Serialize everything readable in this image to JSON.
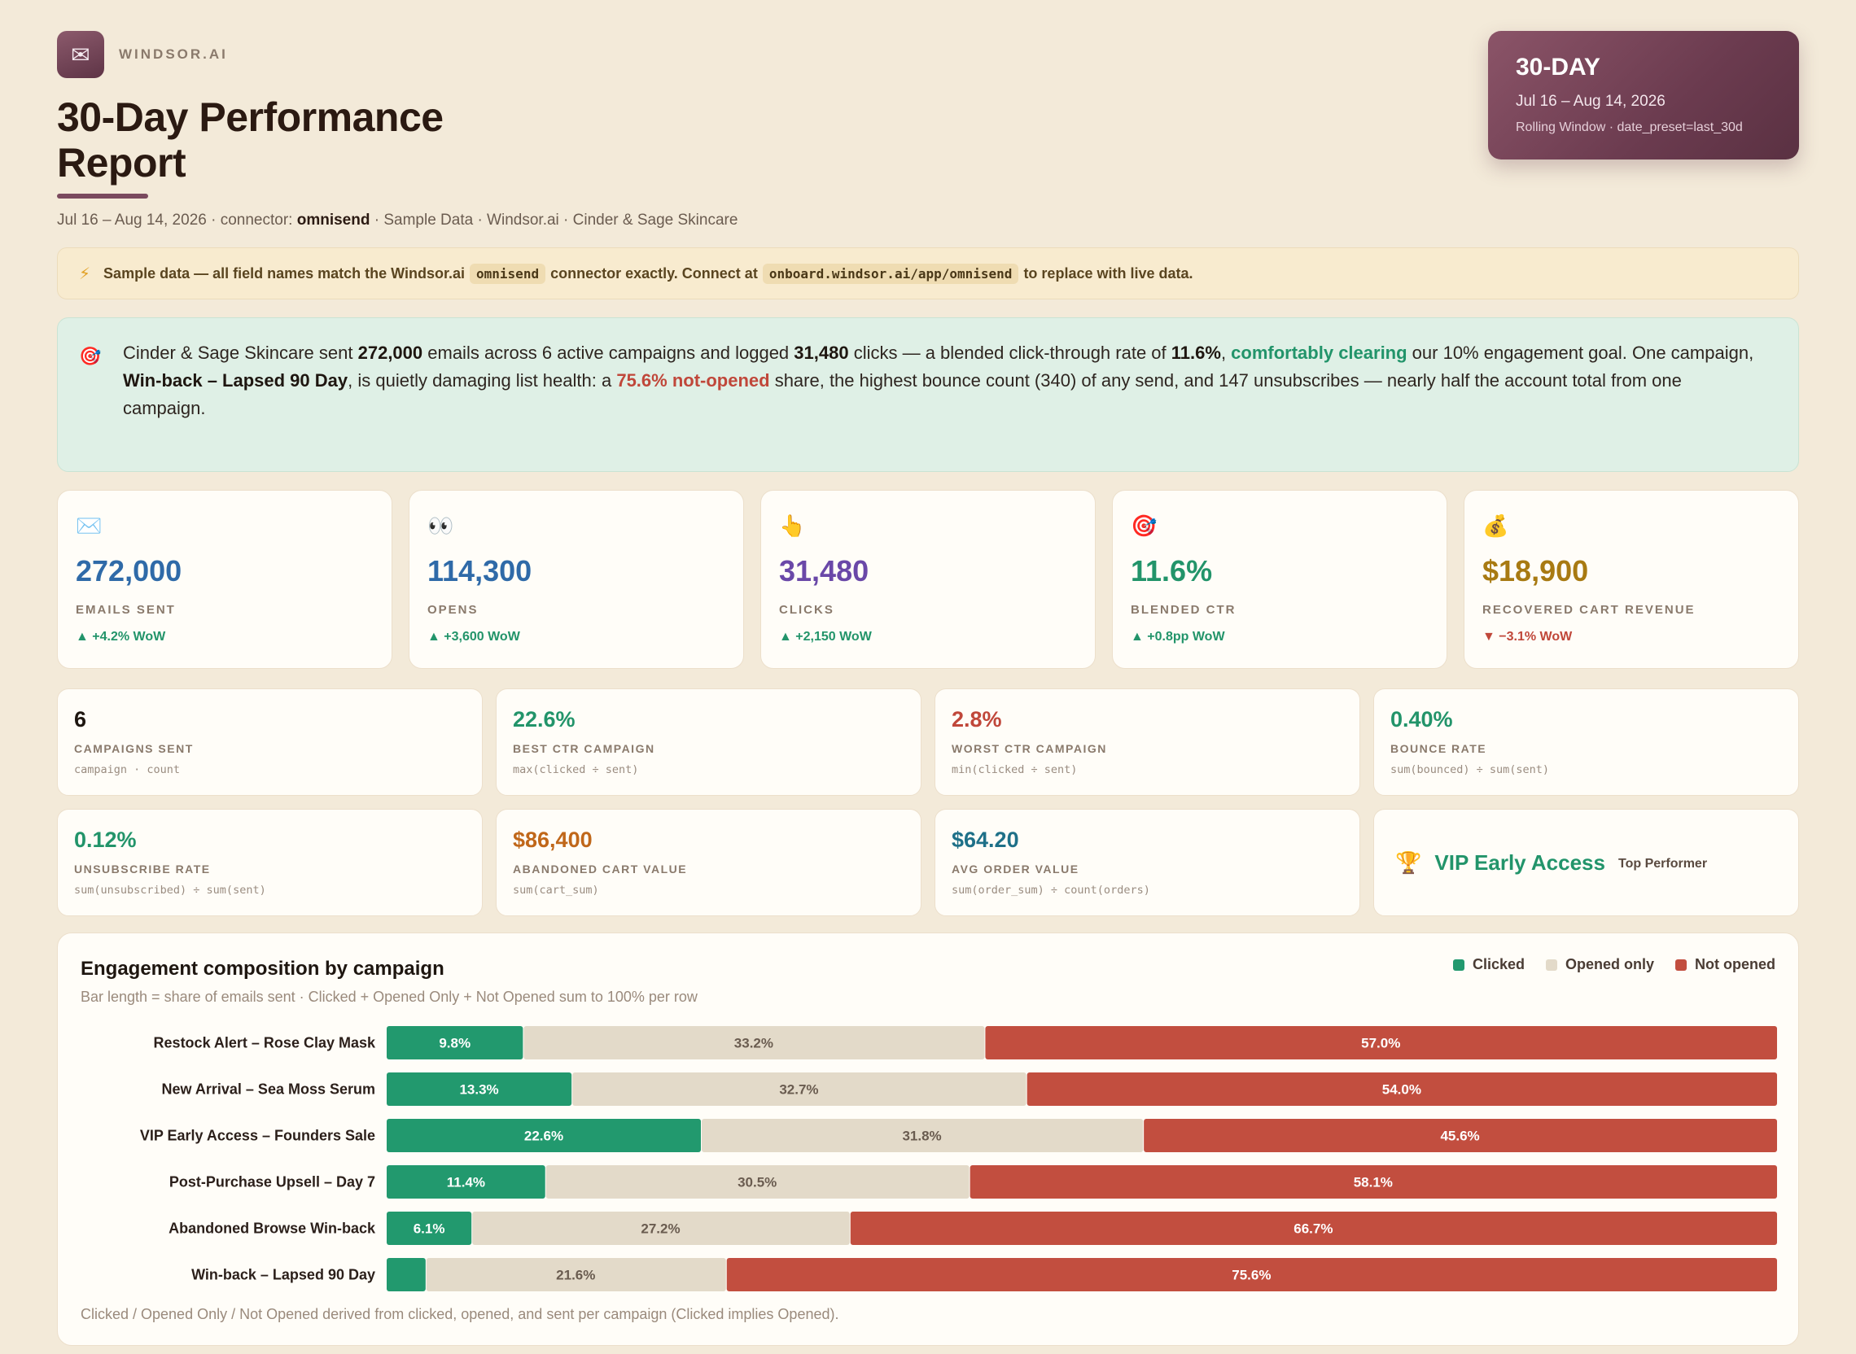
{
  "brand": {
    "icon": "envelope-icon",
    "name": "WINDSOR.AI"
  },
  "title": "30-Day Performance Report",
  "subtitle": {
    "prefix": "Jul 16 – Aug 14, 2026 · connector: ",
    "connector": "omnisend",
    "suffix": " · Sample Data · Windsor.ai · Cinder & Sage Skincare"
  },
  "period": {
    "title": "30-DAY",
    "dates": "Jul 16 – Aug 14, 2026",
    "sub": "Rolling Window · date_preset=last_30d"
  },
  "banner": {
    "icon": "lightning-icon",
    "t1": "Sample data — all field names match the Windsor.ai",
    "code1": "omnisend",
    "t2": "connector exactly. Connect at",
    "code2": "onboard.windsor.ai/app/omnisend",
    "t3": "to replace with live data."
  },
  "summary": {
    "icon": "target-icon",
    "s1": "Cinder & Sage Skincare sent ",
    "b1": "272,000",
    "s2": " emails across 6 active campaigns and logged ",
    "b2": "31,480",
    "s3": " clicks — a blended click-through rate of ",
    "b3": "11.6%",
    "s4": ", ",
    "good": "comfortably clearing",
    "s5": " our 10% engagement goal. One campaign, ",
    "b4": "Win-back – Lapsed 90 Day",
    "s6": ", is quietly damaging list health: a ",
    "bad": "75.6% not-opened",
    "s7": " share, the highest bounce count (340) of any send, and 147 unsubscribes — nearly half the account total from one campaign."
  },
  "kpis": [
    {
      "icon": "envelope-icon",
      "glyph": "✉️",
      "value": "272,000",
      "label": "EMAILS SENT",
      "delta": "▲ +4.2% WoW",
      "trend": "up",
      "color": "#2f6aa8"
    },
    {
      "icon": "eyes-icon",
      "glyph": "👀",
      "value": "114,300",
      "label": "OPENS",
      "delta": "▲ +3,600 WoW",
      "trend": "up",
      "color": "#2f6aa8"
    },
    {
      "icon": "pointing-hand-icon",
      "glyph": "👆",
      "value": "31,480",
      "label": "CLICKS",
      "delta": "▲ +2,150 WoW",
      "trend": "up",
      "color": "#6a48a8"
    },
    {
      "icon": "target-icon",
      "glyph": "🎯",
      "value": "11.6%",
      "label": "BLENDED CTR",
      "delta": "▲ +0.8pp WoW",
      "trend": "up",
      "color": "#22946a"
    },
    {
      "icon": "money-bag-icon",
      "glyph": "💰",
      "value": "$18,900",
      "label": "RECOVERED CART REVENUE",
      "delta": "▼ −3.1% WoW",
      "trend": "down",
      "color": "#a87a12"
    }
  ],
  "metrics": [
    {
      "value": "6",
      "label": "CAMPAIGNS SENT",
      "formula": "campaign · count",
      "color": "#1e1610"
    },
    {
      "value": "22.6%",
      "label": "BEST CTR CAMPAIGN",
      "formula": "max(clicked ÷ sent)",
      "color": "#22946a"
    },
    {
      "value": "2.8%",
      "label": "WORST CTR CAMPAIGN",
      "formula": "min(clicked ÷ sent)",
      "color": "#c0473a"
    },
    {
      "value": "0.40%",
      "label": "BOUNCE RATE",
      "formula": "sum(bounced) ÷ sum(sent)",
      "color": "#22946a"
    },
    {
      "value": "0.12%",
      "label": "UNSUBSCRIBE RATE",
      "formula": "sum(unsubscribed) ÷ sum(sent)",
      "color": "#22946a"
    },
    {
      "value": "$86,400",
      "label": "ABANDONED CART VALUE",
      "formula": "sum(cart_sum)",
      "color": "#c0671a"
    },
    {
      "value": "$64.20",
      "label": "AVG ORDER VALUE",
      "formula": "sum(order_sum) ÷ count(orders)",
      "color": "#1e7088"
    }
  ],
  "top_performer": {
    "icon": "trophy-icon",
    "name": "VIP Early Access",
    "tag": "Top Performer"
  },
  "chart": {
    "title": "Engagement composition by campaign",
    "subtitle": "Bar length = share of emails sent · Clicked + Opened Only + Not Opened sum to 100% per row",
    "footnote": "Clicked / Opened Only / Not Opened derived from clicked, opened, and sent per campaign (Clicked implies Opened).",
    "legend": [
      {
        "name": "Clicked",
        "color": "#22996e"
      },
      {
        "name": "Opened only",
        "color": "#e3dac9"
      },
      {
        "name": "Not opened",
        "color": "#c24e3f"
      }
    ]
  },
  "chart_data": {
    "type": "bar",
    "orientation": "horizontal",
    "stacked": true,
    "categories": [
      "Restock Alert – Rose Clay Mask",
      "New Arrival – Sea Moss Serum",
      "VIP Early Access – Founders Sale",
      "Post-Purchase Upsell – Day 7",
      "Abandoned Browse Win-back",
      "Win-back – Lapsed 90 Day"
    ],
    "series": [
      {
        "name": "Clicked",
        "values": [
          9.8,
          13.3,
          22.6,
          11.4,
          6.1,
          2.8
        ],
        "labels": [
          "9.8%",
          "13.3%",
          "22.6%",
          "11.4%",
          "6.1%",
          ""
        ]
      },
      {
        "name": "Opened only",
        "values": [
          33.2,
          32.7,
          31.8,
          30.5,
          27.2,
          21.6
        ],
        "labels": [
          "33.2%",
          "32.7%",
          "31.8%",
          "30.5%",
          "27.2%",
          "21.6%"
        ]
      },
      {
        "name": "Not opened",
        "values": [
          57.0,
          54.0,
          45.6,
          58.1,
          66.7,
          75.6
        ],
        "labels": [
          "57.0%",
          "54.0%",
          "45.6%",
          "58.1%",
          "66.7%",
          "75.6%"
        ]
      }
    ],
    "xlim": [
      0,
      100
    ],
    "unit": "%"
  }
}
